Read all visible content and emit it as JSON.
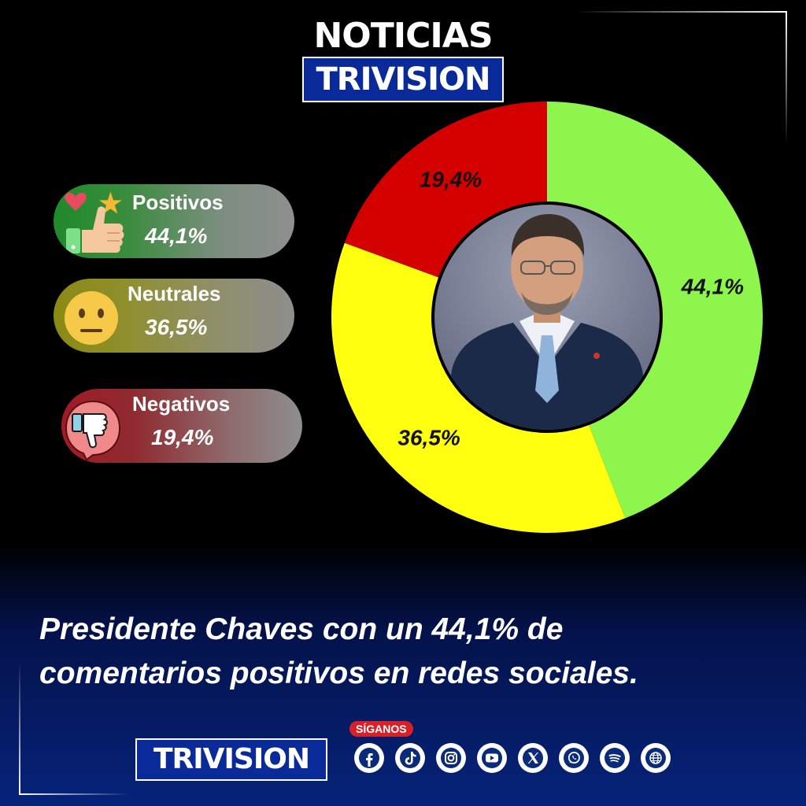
{
  "brand": {
    "top_line1": "NOTICIAS",
    "top_line2": "TRIVISION",
    "bottom": "TRIVISION"
  },
  "legend": [
    {
      "label": "Positivos",
      "value": "44,1%",
      "icon": "thumbs-up-heart-star-icon"
    },
    {
      "label": "Neutrales",
      "value": "36,5%",
      "icon": "neutral-face-icon"
    },
    {
      "label": "Negativos",
      "value": "19,4%",
      "icon": "thumbs-down-icon"
    }
  ],
  "chart_data": {
    "type": "pie",
    "categories": [
      "Positivos",
      "Neutrales",
      "Negativos"
    ],
    "values": [
      44.1,
      36.5,
      19.4
    ],
    "data_labels": [
      "44,1%",
      "36,5%",
      "19,4%"
    ],
    "colors": [
      "#8ef54d",
      "#ffff0f",
      "#d40000"
    ],
    "title": ""
  },
  "headline": {
    "line1": "Presidente Chaves con un 44,1% de",
    "line2": "comentarios positivos en redes sociales."
  },
  "follow": {
    "label": "SÍGANOS",
    "icons": [
      "facebook-icon",
      "tiktok-icon",
      "instagram-icon",
      "youtube-icon",
      "x-icon",
      "whatsapp-icon",
      "spotify-icon",
      "web-icon"
    ]
  }
}
